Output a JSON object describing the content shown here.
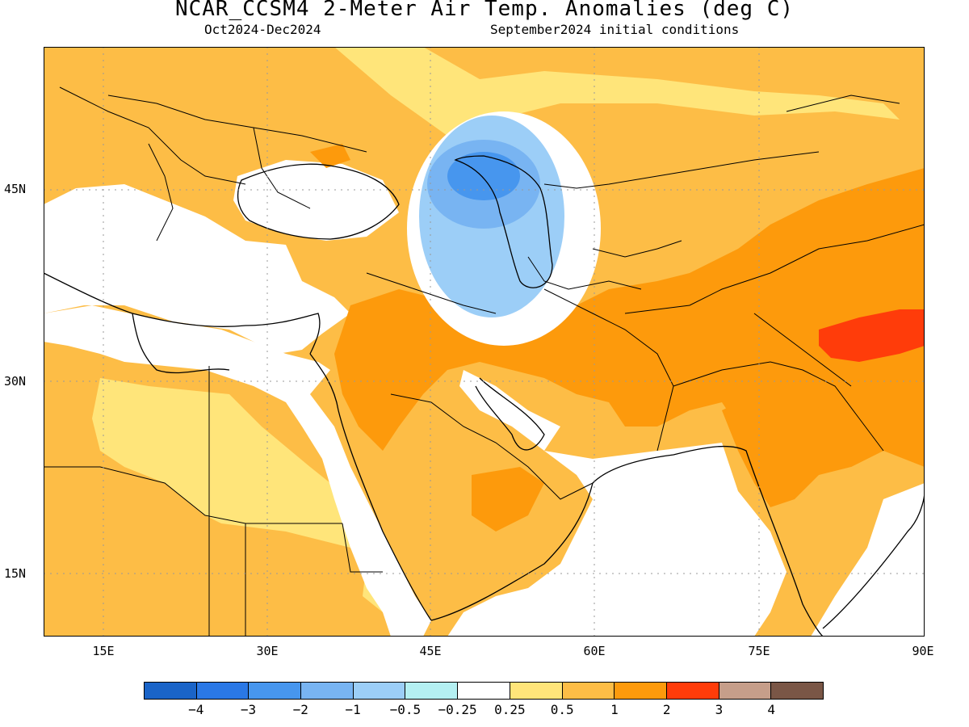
{
  "title": "NCAR_CCSM4 2-Meter Air Temp. Anomalies (deg C)",
  "period": "Oct2024-Dec2024",
  "initial_conditions": "September2024 initial conditions",
  "lat_labels": [
    "45N",
    "30N",
    "15N"
  ],
  "lon_labels": [
    "15E",
    "30E",
    "45E",
    "60E",
    "75E",
    "90E"
  ],
  "legend": {
    "colors": [
      "#1a64c8",
      "#2a78e6",
      "#4796ee",
      "#78b4f2",
      "#9ccef7",
      "#b4f0f2",
      "#ffffff",
      "#ffe57a",
      "#fdbd46",
      "#fd9a0c",
      "#ff3c0a",
      "#c69e8a",
      "#7a5646"
    ],
    "labels": [
      "-4",
      "-3",
      "-2",
      "-1",
      "-0.5",
      "-0.25",
      "0.25",
      "0.5",
      "1",
      "2",
      "3",
      "4"
    ]
  }
}
